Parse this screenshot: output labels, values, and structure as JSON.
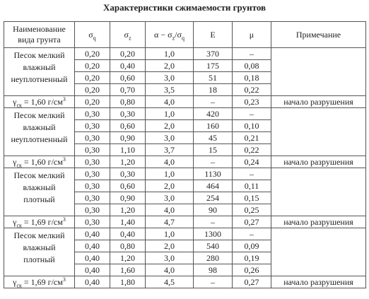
{
  "title": "Характеристики сжимаемости грунтов",
  "header": [
    [
      [
        "Наименование"
      ],
      [
        "вида грунта"
      ]
    ],
    [
      [
        "σ",
        {
          "sub": "q"
        }
      ]
    ],
    [
      [
        "σ",
        {
          "sub": "z"
        }
      ]
    ],
    [
      [
        "α − σ",
        {
          "sub": "z"
        },
        "/σ",
        {
          "sub": "q"
        }
      ]
    ],
    [
      [
        "E"
      ]
    ],
    [
      [
        "μ"
      ]
    ],
    [
      [
        "Примечание"
      ]
    ]
  ],
  "groups": [
    {
      "name": [
        "Песок мелкий",
        "влажный",
        "неуплотненный"
      ],
      "rows": [
        [
          "0,20",
          "0,20",
          "1,0",
          "370",
          "–"
        ],
        [
          "0,20",
          "0,40",
          "2,0",
          "175",
          "0,08"
        ],
        [
          "0,20",
          "0,60",
          "3,0",
          "51",
          "0,18"
        ],
        [
          "0,20",
          "0,70",
          "3,5",
          "18",
          "0,22"
        ]
      ],
      "density": {
        "label": [
          "γ",
          {
            "sub": "ск"
          },
          " = 1,60 г/см",
          {
            "sup": "3"
          }
        ],
        "values": [
          "0,20",
          "0,80",
          "4,0",
          "–",
          "0,23"
        ],
        "note": "начало разрушения"
      }
    },
    {
      "name": [
        "Песок мелкий",
        "влажный",
        "неуплотненный"
      ],
      "rows": [
        [
          "0,30",
          "0,30",
          "1,0",
          "420",
          "–"
        ],
        [
          "0,30",
          "0,60",
          "2,0",
          "160",
          "0,10"
        ],
        [
          "0,30",
          "0,90",
          "3,0",
          "45",
          "0,21"
        ],
        [
          "0,30",
          "1,10",
          "3,7",
          "15",
          "0,22"
        ]
      ],
      "density": {
        "label": [
          "γ",
          {
            "sub": "ск"
          },
          " = 1,60 г/см",
          {
            "sup": "3"
          }
        ],
        "values": [
          "0,30",
          "1,20",
          "4,0",
          "–",
          "0,24"
        ],
        "note": "начало разрушения"
      }
    },
    {
      "name": [
        "Песок мелкий",
        "влажный",
        "плотный"
      ],
      "rows": [
        [
          "0,30",
          "0,30",
          "1,0",
          "1130",
          "–"
        ],
        [
          "0,30",
          "0,60",
          "2,0",
          "464",
          "0,11"
        ],
        [
          "0,30",
          "0,90",
          "3,0",
          "254",
          "0,15"
        ],
        [
          "0,30",
          "1,20",
          "4,0",
          "90",
          "0,25"
        ]
      ],
      "density": {
        "label": [
          "γ",
          {
            "sub": "ск"
          },
          " = 1,69 г/см",
          {
            "sup": "3"
          }
        ],
        "values": [
          "0,30",
          "1,40",
          "4,7",
          "–",
          "0,27"
        ],
        "note": "начало разрушения"
      }
    },
    {
      "name": [
        "Песок мелкий",
        "влажный",
        "плотный"
      ],
      "rows": [
        [
          "0,40",
          "0,40",
          "1,0",
          "1300",
          "–"
        ],
        [
          "0,40",
          "0,80",
          "2,0",
          "540",
          "0,09"
        ],
        [
          "0,40",
          "1,20",
          "3,0",
          "280",
          "0,19"
        ],
        [
          "0,40",
          "1,60",
          "4,0",
          "98",
          "0,26"
        ]
      ],
      "density": {
        "label": [
          "γ",
          {
            "sub": "ск"
          },
          " = 1,69 г/см",
          {
            "sup": "3"
          }
        ],
        "values": [
          "0,40",
          "1,80",
          "4,5",
          "–",
          "0,27"
        ],
        "note": "начало разрушения"
      }
    }
  ]
}
